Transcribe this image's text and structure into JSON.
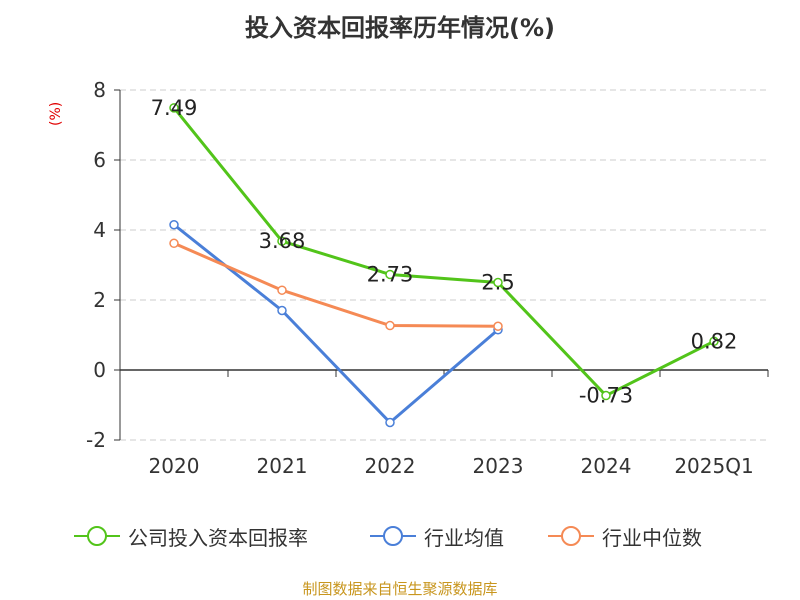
{
  "title": "投入资本回报率历年情况(%)",
  "source": "制图数据来自恒生聚源数据库",
  "chart_data": {
    "type": "line",
    "title": "投入资本回报率历年情况(%)",
    "ylabel": "(%)",
    "categories": [
      "2020",
      "2021",
      "2022",
      "2023",
      "2024",
      "2025Q1"
    ],
    "ylim": [
      -2,
      8
    ],
    "yticks": [
      -2,
      0,
      2,
      4,
      6,
      8
    ],
    "grid": true,
    "legend_position": "bottom",
    "series": [
      {
        "name": "公司投入资本回报率",
        "color": "#52c41a",
        "values": [
          7.49,
          3.68,
          2.73,
          2.5,
          -0.73,
          0.82
        ],
        "labels": [
          "7.49",
          "3.68",
          "2.73",
          "2.5",
          "-0.73",
          "0.82"
        ]
      },
      {
        "name": "行业均值",
        "color": "#4a7fd8",
        "values": [
          4.15,
          1.7,
          -1.5,
          1.15,
          null,
          null
        ]
      },
      {
        "name": "行业中位数",
        "color": "#f58a55",
        "values": [
          3.62,
          2.28,
          1.27,
          1.25,
          null,
          null
        ]
      }
    ]
  }
}
